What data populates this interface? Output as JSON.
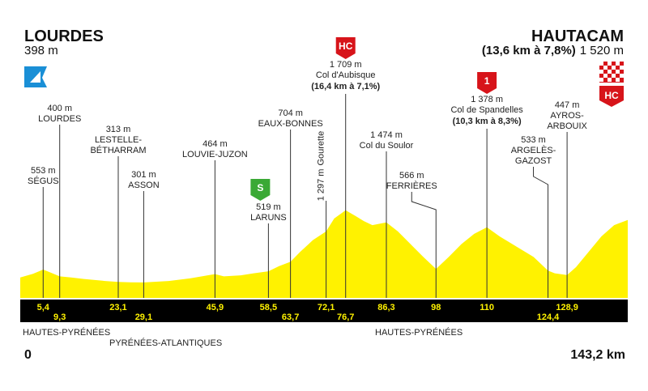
{
  "chart_data": {
    "type": "profile",
    "color": "#fff200",
    "start": {
      "name": "LOURDES",
      "altitude": {
        "value": 398,
        "label": "398 m"
      }
    },
    "finish": {
      "name": "HAUTACAM",
      "climb": "(13,6 km à 7,8%)",
      "altitude": {
        "value": 1520,
        "label": "1 520 m"
      },
      "badge": "HC"
    },
    "xlim": [
      0,
      143.2
    ],
    "xlim_labels": [
      "0",
      "143,2 km"
    ],
    "ylim": [
      0,
      2000
    ],
    "x": [
      0,
      3,
      5.4,
      7,
      9.3,
      12,
      15,
      20,
      23.1,
      26,
      29.1,
      35,
      40,
      45.9,
      48,
      52,
      55,
      58.5,
      61,
      63.7,
      66,
      69,
      72.1,
      74,
      76.7,
      79,
      81,
      83,
      86.3,
      89,
      92,
      95,
      98,
      101,
      104,
      107,
      110,
      113,
      117,
      121,
      124.4,
      126,
      128.9,
      131,
      134,
      137,
      140,
      143.2
    ],
    "values": [
      398,
      470,
      553,
      500,
      420,
      400,
      370,
      330,
      313,
      305,
      301,
      330,
      380,
      464,
      420,
      440,
      480,
      519,
      620,
      704,
      900,
      1130,
      1297,
      1550,
      1709,
      1600,
      1500,
      1420,
      1474,
      1300,
      1050,
      800,
      566,
      800,
      1050,
      1250,
      1378,
      1200,
      1000,
      800,
      533,
      480,
      447,
      600,
      900,
      1200,
      1420,
      1520
    ],
    "waypoints": [
      {
        "km": {
          "value": 5.4,
          "label": "5,4"
        },
        "altitude": {
          "value": 553,
          "label": "553 m"
        },
        "name": [
          "SÉGUS"
        ]
      },
      {
        "km": {
          "value": 9.3,
          "label": "9,3"
        },
        "altitude": {
          "value": 400,
          "label": "400 m"
        },
        "name": [
          "LOURDES"
        ]
      },
      {
        "km": {
          "value": 23.1,
          "label": "23,1"
        },
        "altitude": {
          "value": 313,
          "label": "313 m"
        },
        "name": [
          "LESTELLE-",
          "BÉTHARRAM"
        ]
      },
      {
        "km": {
          "value": 29.1,
          "label": "29,1"
        },
        "altitude": {
          "value": 301,
          "label": "301 m"
        },
        "name": [
          "ASSON"
        ]
      },
      {
        "km": {
          "value": 45.9,
          "label": "45,9"
        },
        "altitude": {
          "value": 464,
          "label": "464 m"
        },
        "name": [
          "LOUVIE-JUZON"
        ]
      },
      {
        "km": {
          "value": 58.5,
          "label": "58,5"
        },
        "altitude": {
          "value": 519,
          "label": "519 m"
        },
        "name": [
          "LARUNS"
        ],
        "badge": "S"
      },
      {
        "km": {
          "value": 63.7,
          "label": "63,7"
        },
        "altitude": {
          "value": 704,
          "label": "704 m"
        },
        "name": [
          "EAUX-BONNES"
        ]
      },
      {
        "km": {
          "value": 72.1,
          "label": "72,1"
        },
        "altitude": {
          "value": 1297,
          "label": "1 297 m"
        },
        "name": [
          "Gourette"
        ]
      },
      {
        "km": {
          "value": 76.7,
          "label": "76,7"
        },
        "altitude": {
          "value": 1709,
          "label": "1 709 m"
        },
        "name": [
          "Col d'Aubisque"
        ],
        "climb": "(16,4 km à 7,1%)",
        "badge": "HC"
      },
      {
        "km": {
          "value": 86.3,
          "label": "86,3"
        },
        "altitude": {
          "value": 1474,
          "label": "1 474 m"
        },
        "name": [
          "Col du Soulor"
        ]
      },
      {
        "km": 98,
        "altitude": {
          "value": 566,
          "label": "566 m"
        },
        "name": [
          "FERRIÈRES"
        ]
      },
      {
        "km": 110,
        "altitude": {
          "value": 1378,
          "label": "1 378 m"
        },
        "name": [
          "Col de Spandelles"
        ],
        "climb": "(10,3 km à 8,3%)",
        "badge": "1"
      },
      {
        "km": {
          "value": 124.4,
          "label": "124,4"
        },
        "altitude": {
          "value": 533,
          "label": "533 m"
        },
        "name": [
          "ARGELÈS-",
          "GAZOST"
        ]
      },
      {
        "km": {
          "value": 128.9,
          "label": "128,9"
        },
        "altitude": {
          "value": 447,
          "label": "447 m"
        },
        "name": [
          "AYROS-",
          "ARBOUIX"
        ]
      }
    ],
    "regions": [
      "HAUTES-PYRÉNÉES",
      "PYRÉNÉES-ATLANTIQUES",
      "HAUTES-PYRÉNÉES"
    ]
  }
}
